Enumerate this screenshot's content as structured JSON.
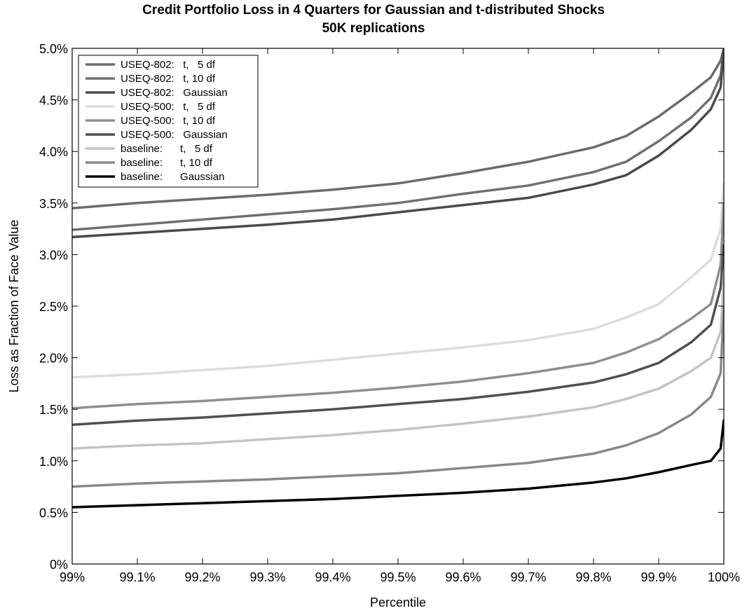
{
  "chart_data": {
    "type": "line",
    "title": "Credit Portfolio Loss in 4 Quarters for Gaussian and t-distributed Shocks",
    "subtitle": "50K replications",
    "xlabel": "Percentile",
    "ylabel": "Loss as Fraction of Face Value",
    "xlim": [
      99.0,
      100.0
    ],
    "ylim": [
      0.0,
      5.0
    ],
    "x_ticks": [
      99.0,
      99.1,
      99.2,
      99.3,
      99.4,
      99.5,
      99.6,
      99.7,
      99.8,
      99.9,
      100.0
    ],
    "x_tick_labels": [
      "99%",
      "99.1%",
      "99.2%",
      "99.3%",
      "99.4%",
      "99.5%",
      "99.6%",
      "99.7%",
      "99.8%",
      "99.9%",
      "100%"
    ],
    "y_ticks": [
      0,
      0.5,
      1.0,
      1.5,
      2.0,
      2.5,
      3.0,
      3.5,
      4.0,
      4.5,
      5.0
    ],
    "y_tick_labels": [
      "0%",
      "0.5%",
      "1.0%",
      "1.5%",
      "2.0%",
      "2.5%",
      "3.0%",
      "3.5%",
      "4.0%",
      "4.5%",
      "5.0%"
    ],
    "grid": false,
    "legend_position": "top-left",
    "x": [
      99.0,
      99.1,
      99.2,
      99.3,
      99.4,
      99.5,
      99.6,
      99.7,
      99.8,
      99.85,
      99.9,
      99.95,
      99.98,
      99.995,
      100.0
    ],
    "series": [
      {
        "name": "USEQ-802:   t,   5 df",
        "color": "#6b6b6b",
        "width": 3.5,
        "values": [
          3.45,
          3.5,
          3.54,
          3.58,
          3.63,
          3.69,
          3.79,
          3.9,
          4.04,
          4.15,
          4.34,
          4.57,
          4.72,
          4.88,
          5.0
        ]
      },
      {
        "name": "USEQ-802:   t, 10 df",
        "color": "#707070",
        "width": 3.5,
        "values": [
          3.24,
          3.29,
          3.34,
          3.39,
          3.44,
          3.5,
          3.59,
          3.67,
          3.8,
          3.9,
          4.1,
          4.33,
          4.52,
          4.74,
          5.0
        ]
      },
      {
        "name": "USEQ-802:   Gaussian",
        "color": "#4a4a4a",
        "width": 3.5,
        "values": [
          3.17,
          3.21,
          3.25,
          3.29,
          3.34,
          3.41,
          3.48,
          3.55,
          3.68,
          3.77,
          3.96,
          4.21,
          4.41,
          4.62,
          5.0
        ]
      },
      {
        "name": "USEQ-500:   t,   5 df",
        "color": "#dcdcdc",
        "width": 3.5,
        "values": [
          1.81,
          1.84,
          1.88,
          1.92,
          1.98,
          2.04,
          2.1,
          2.17,
          2.28,
          2.39,
          2.52,
          2.78,
          2.95,
          3.25,
          3.7
        ]
      },
      {
        "name": "USEQ-500:   t, 10 df",
        "color": "#8e8e8e",
        "width": 3.5,
        "values": [
          1.51,
          1.55,
          1.58,
          1.62,
          1.66,
          1.71,
          1.77,
          1.85,
          1.95,
          2.05,
          2.18,
          2.38,
          2.52,
          2.9,
          3.5
        ]
      },
      {
        "name": "USEQ-500:   Gaussian",
        "color": "#505050",
        "width": 3.5,
        "values": [
          1.35,
          1.39,
          1.42,
          1.46,
          1.5,
          1.55,
          1.6,
          1.67,
          1.76,
          1.84,
          1.95,
          2.15,
          2.32,
          2.68,
          3.1
        ]
      },
      {
        "name": "baseline:      t,   5 df",
        "color": "#c4c4c4",
        "width": 3.5,
        "values": [
          1.12,
          1.15,
          1.17,
          1.21,
          1.25,
          1.3,
          1.36,
          1.43,
          1.52,
          1.6,
          1.7,
          1.87,
          2.0,
          2.25,
          2.8
        ]
      },
      {
        "name": "baseline:      t, 10 df",
        "color": "#888888",
        "width": 3.5,
        "values": [
          0.75,
          0.78,
          0.8,
          0.82,
          0.85,
          0.88,
          0.93,
          0.98,
          1.07,
          1.15,
          1.27,
          1.45,
          1.62,
          1.85,
          2.5
        ]
      },
      {
        "name": "baseline:      Gaussian",
        "color": "#000000",
        "width": 3.5,
        "values": [
          0.55,
          0.57,
          0.59,
          0.61,
          0.63,
          0.66,
          0.69,
          0.73,
          0.79,
          0.83,
          0.89,
          0.96,
          1.0,
          1.12,
          1.4
        ]
      }
    ]
  }
}
